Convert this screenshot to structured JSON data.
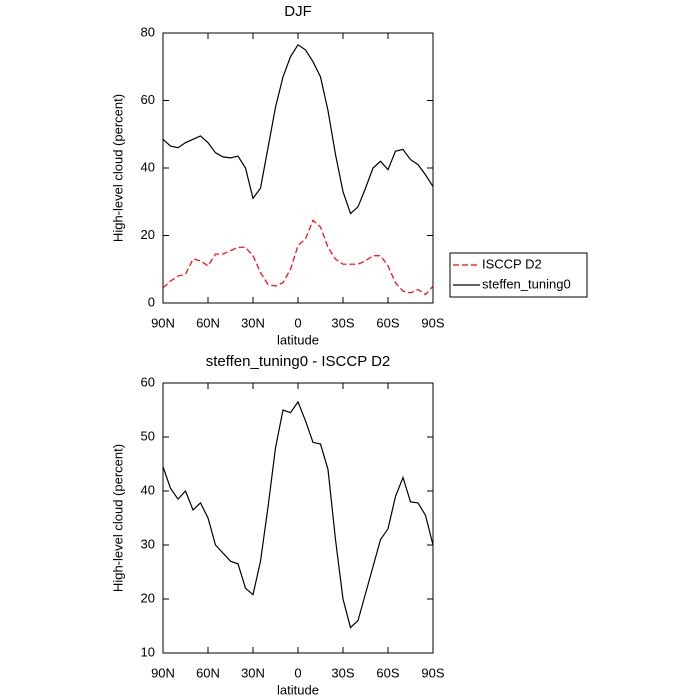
{
  "chart_data": [
    {
      "type": "line",
      "title": "DJF",
      "xlabel": "latitude",
      "ylabel": "High-level cloud (percent)",
      "x": [
        90,
        85,
        80,
        75,
        70,
        65,
        60,
        55,
        50,
        45,
        40,
        35,
        30,
        25,
        20,
        15,
        10,
        5,
        0,
        -5,
        -10,
        -15,
        -20,
        -25,
        -30,
        -35,
        -40,
        -45,
        -50,
        -55,
        -60,
        -65,
        -70,
        -75,
        -80,
        -85,
        -90
      ],
      "series": [
        {
          "name": "ISCCP D2",
          "color": "#ff0000",
          "linestyle": "dashed",
          "values": [
            4.5,
            6.5,
            8,
            8.5,
            13,
            12.5,
            11,
            14.5,
            14.5,
            15.5,
            16.5,
            16.5,
            14,
            9,
            5.5,
            5,
            6,
            10,
            17,
            19,
            24.5,
            22.5,
            16.5,
            13,
            11.5,
            11.5,
            11.5,
            12.5,
            14,
            14,
            11,
            6,
            3.5,
            3,
            4,
            2.5,
            5
          ]
        },
        {
          "name": "steffen_tuning0",
          "color": "#000000",
          "linestyle": "solid",
          "values": [
            48.5,
            46.5,
            46,
            47.5,
            48.5,
            49.5,
            47.5,
            44.5,
            43.3,
            43,
            43.5,
            40,
            31,
            34,
            46,
            58,
            67,
            73,
            76.5,
            75,
            71.5,
            67,
            57,
            44,
            33,
            26.5,
            28.5,
            34,
            40,
            42,
            39.5,
            45,
            45.5,
            42.5,
            41,
            38,
            34.5
          ]
        }
      ],
      "xlim": [
        90,
        -90
      ],
      "xticks": [
        {
          "value": 90,
          "label": "90N"
        },
        {
          "value": 60,
          "label": "60N"
        },
        {
          "value": 30,
          "label": "30N"
        },
        0,
        {
          "value": -30,
          "label": "30S"
        },
        {
          "value": -60,
          "label": "60S"
        },
        {
          "value": -90,
          "label": "90S"
        }
      ],
      "ylim": [
        0,
        80
      ],
      "yticks": [
        0,
        20,
        40,
        60,
        80
      ],
      "legend": "right"
    },
    {
      "type": "line",
      "title": "steffen_tuning0 - ISCCP D2",
      "xlabel": "latitude",
      "ylabel": "High-level cloud (percent)",
      "x": [
        90,
        85,
        80,
        75,
        70,
        65,
        60,
        55,
        50,
        45,
        40,
        35,
        30,
        25,
        20,
        15,
        10,
        5,
        0,
        -5,
        -10,
        -15,
        -20,
        -25,
        -30,
        -35,
        -40,
        -45,
        -50,
        -55,
        -60,
        -65,
        -70,
        -75,
        -80,
        -85,
        -90
      ],
      "series": [
        {
          "color": "#000000",
          "linestyle": "solid",
          "values": [
            44.5,
            40.5,
            38.5,
            40,
            36.5,
            37.8,
            35,
            30,
            28.5,
            27,
            26.5,
            22,
            20.8,
            27,
            37,
            48,
            55,
            54.5,
            56.5,
            53,
            49,
            48.7,
            44,
            31,
            20,
            14.7,
            16,
            21,
            26,
            31,
            33,
            39,
            42.5,
            38,
            37.8,
            35.5,
            30
          ]
        }
      ],
      "xlim": [
        90,
        -90
      ],
      "xticks": [
        {
          "value": 90,
          "label": "90N"
        },
        {
          "value": 60,
          "label": "60N"
        },
        {
          "value": 30,
          "label": "30N"
        },
        0,
        {
          "value": -30,
          "label": "30S"
        },
        {
          "value": -60,
          "label": "60S"
        },
        {
          "value": -90,
          "label": "90S"
        }
      ],
      "ylim": [
        10,
        60
      ],
      "yticks": [
        10,
        20,
        30,
        40,
        50,
        60
      ]
    }
  ]
}
